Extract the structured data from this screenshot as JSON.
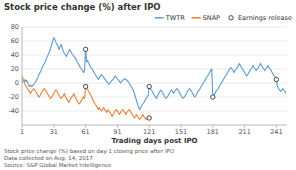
{
  "chart_data": {
    "type": "line",
    "title": "Stock price change (%) after IPO",
    "xlabel": "Trading days post IPO",
    "annotations": [
      "Stock price change (%) based on day 1 closing price after IPO",
      "Data collected on Aug. 14, 2017",
      "Source: S&P Global Market Intelligence"
    ],
    "xlim": [
      1,
      251
    ],
    "xticks": [
      1,
      31,
      61,
      91,
      121,
      151,
      181,
      211,
      241
    ],
    "ylim": [
      -60,
      80
    ],
    "yticks": [
      -40,
      -20,
      0,
      20,
      40,
      60,
      80
    ],
    "grid": true,
    "legend": "upper right",
    "series": [
      {
        "name": "TWTR",
        "color": "#5b9bd5",
        "x": [
          1,
          2,
          3,
          4,
          5,
          6,
          7,
          8,
          9,
          10,
          11,
          12,
          13,
          14,
          15,
          16,
          17,
          18,
          19,
          20,
          21,
          22,
          23,
          24,
          25,
          26,
          27,
          28,
          29,
          30,
          31,
          32,
          33,
          34,
          35,
          36,
          37,
          38,
          39,
          40,
          41,
          42,
          43,
          44,
          45,
          46,
          47,
          48,
          49,
          50,
          51,
          52,
          53,
          54,
          55,
          56,
          57,
          58,
          59,
          60,
          61,
          62,
          63,
          64,
          65,
          66,
          67,
          68,
          69,
          70,
          71,
          72,
          73,
          74,
          75,
          76,
          77,
          78,
          79,
          80,
          81,
          82,
          83,
          84,
          85,
          86,
          87,
          88,
          89,
          90,
          91,
          92,
          93,
          94,
          95,
          96,
          97,
          98,
          99,
          100,
          101,
          102,
          103,
          104,
          105,
          106,
          107,
          108,
          109,
          110,
          111,
          112,
          113,
          114,
          115,
          116,
          117,
          118,
          119,
          120,
          121,
          122,
          123,
          124,
          125,
          126,
          127,
          128,
          129,
          130,
          131,
          132,
          133,
          134,
          135,
          136,
          137,
          138,
          139,
          140,
          141,
          142,
          143,
          144,
          145,
          146,
          147,
          148,
          149,
          150,
          151,
          152,
          153,
          154,
          155,
          156,
          157,
          158,
          159,
          160,
          161,
          162,
          163,
          164,
          165,
          166,
          167,
          168,
          169,
          170,
          171,
          172,
          173,
          174,
          175,
          176,
          177,
          178,
          179,
          180,
          181,
          182,
          183,
          184,
          185,
          186,
          187,
          188,
          189,
          190,
          191,
          192,
          193,
          194,
          195,
          196,
          197,
          198,
          199,
          200,
          201,
          202,
          203,
          204,
          205,
          206,
          207,
          208,
          209,
          210,
          211,
          212,
          213,
          214,
          215,
          216,
          217,
          218,
          219,
          220,
          221,
          222,
          223,
          224,
          225,
          226,
          227,
          228,
          229,
          230,
          231,
          232,
          233,
          234,
          235,
          236,
          237,
          238,
          239,
          240,
          241,
          242,
          243,
          244,
          245,
          246,
          247,
          248,
          249,
          250
        ],
        "values": [
          0,
          3,
          5,
          2,
          4,
          2,
          -2,
          -5,
          -3,
          -5,
          -4,
          -2,
          0,
          2,
          5,
          8,
          12,
          15,
          18,
          22,
          25,
          28,
          30,
          35,
          38,
          42,
          45,
          50,
          55,
          60,
          65,
          62,
          58,
          55,
          52,
          48,
          52,
          55,
          50,
          45,
          42,
          40,
          38,
          42,
          45,
          48,
          45,
          42,
          40,
          38,
          36,
          34,
          30,
          28,
          25,
          22,
          20,
          18,
          15,
          18,
          48,
          30,
          32,
          28,
          25,
          22,
          20,
          18,
          15,
          12,
          10,
          8,
          5,
          8,
          10,
          12,
          10,
          8,
          6,
          4,
          2,
          0,
          -2,
          0,
          2,
          4,
          5,
          8,
          10,
          8,
          6,
          4,
          2,
          0,
          2,
          4,
          5,
          6,
          5,
          4,
          2,
          0,
          -2,
          -5,
          -8,
          -10,
          -15,
          -20,
          -25,
          -30,
          -35,
          -38,
          -35,
          -32,
          -30,
          -28,
          -25,
          -22,
          -20,
          -18,
          -5,
          -8,
          -10,
          -12,
          -15,
          -18,
          -20,
          -22,
          -18,
          -15,
          -12,
          -10,
          -12,
          -15,
          -18,
          -20,
          -22,
          -20,
          -18,
          -15,
          -12,
          -10,
          -12,
          -15,
          -12,
          -10,
          -8,
          -10,
          -12,
          -15,
          -18,
          -20,
          -22,
          -20,
          -18,
          -15,
          -12,
          -10,
          -8,
          -10,
          -12,
          -15,
          -18,
          -20,
          -18,
          -15,
          -12,
          -10,
          -8,
          -5,
          -3,
          0,
          2,
          5,
          8,
          10,
          12,
          15,
          18,
          20,
          -20,
          -18,
          -15,
          -12,
          -10,
          -8,
          -5,
          -3,
          0,
          2,
          5,
          8,
          10,
          12,
          15,
          18,
          20,
          22,
          20,
          18,
          15,
          18,
          20,
          22,
          25,
          28,
          25,
          22,
          20,
          18,
          15,
          12,
          10,
          12,
          15,
          18,
          20,
          22,
          25,
          22,
          20,
          18,
          20,
          22,
          25,
          28,
          25,
          22,
          20,
          18,
          20,
          22,
          25,
          22,
          20,
          18,
          15,
          12,
          10,
          8,
          5,
          -5,
          -8,
          -10,
          -12,
          -10,
          -8,
          -10,
          -12,
          -15
        ]
      },
      {
        "name": "SNAP",
        "color": "#ed7d31",
        "x": [
          1,
          2,
          3,
          4,
          5,
          6,
          7,
          8,
          9,
          10,
          11,
          12,
          13,
          14,
          15,
          16,
          17,
          18,
          19,
          20,
          21,
          22,
          23,
          24,
          25,
          26,
          27,
          28,
          29,
          30,
          31,
          32,
          33,
          34,
          35,
          36,
          37,
          38,
          39,
          40,
          41,
          42,
          43,
          44,
          45,
          46,
          47,
          48,
          49,
          50,
          51,
          52,
          53,
          54,
          55,
          56,
          57,
          58,
          59,
          60,
          61,
          62,
          63,
          64,
          65,
          66,
          67,
          68,
          69,
          70,
          71,
          72,
          73,
          74,
          75,
          76,
          77,
          78,
          79,
          80,
          81,
          82,
          83,
          84,
          85,
          86,
          87,
          88,
          89,
          90,
          91,
          92,
          93,
          94,
          95,
          96,
          97,
          98,
          99,
          100,
          101,
          102,
          103,
          104,
          105,
          106,
          107,
          108,
          109,
          110,
          111,
          112,
          113,
          114,
          115,
          116,
          117,
          118,
          119,
          120,
          121
        ],
        "values": [
          10,
          5,
          2,
          -2,
          -5,
          -8,
          -10,
          -12,
          -15,
          -12,
          -10,
          -8,
          -10,
          -12,
          -15,
          -18,
          -20,
          -18,
          -15,
          -12,
          -10,
          -8,
          -10,
          -12,
          -15,
          -18,
          -20,
          -22,
          -20,
          -18,
          -15,
          -12,
          -10,
          -12,
          -15,
          -18,
          -20,
          -22,
          -20,
          -18,
          -15,
          -20,
          -22,
          -25,
          -28,
          -25,
          -22,
          -20,
          -18,
          -15,
          -20,
          -22,
          -25,
          -28,
          -30,
          -28,
          -25,
          -22,
          -20,
          -22,
          -5,
          -8,
          -10,
          -12,
          -15,
          -18,
          -20,
          -25,
          -28,
          -30,
          -32,
          -35,
          -38,
          -35,
          -38,
          -40,
          -38,
          -35,
          -38,
          -40,
          -42,
          -38,
          -40,
          -42,
          -45,
          -48,
          -45,
          -42,
          -40,
          -38,
          -40,
          -42,
          -45,
          -42,
          -40,
          -38,
          -40,
          -42,
          -45,
          -42,
          -40,
          -38,
          -40,
          -42,
          -45,
          -48,
          -50,
          -48,
          -45,
          -48,
          -50,
          -52,
          -50,
          -48,
          -45,
          -48,
          -50,
          -52,
          -50,
          -48,
          -50
        ]
      },
      {
        "name": "Earnings release",
        "type": "scatter",
        "marker": "circle",
        "x": [
          61,
          121,
          181,
          241,
          61,
          121
        ],
        "values": [
          48,
          -5,
          -20,
          5,
          -5,
          -50
        ]
      }
    ]
  }
}
